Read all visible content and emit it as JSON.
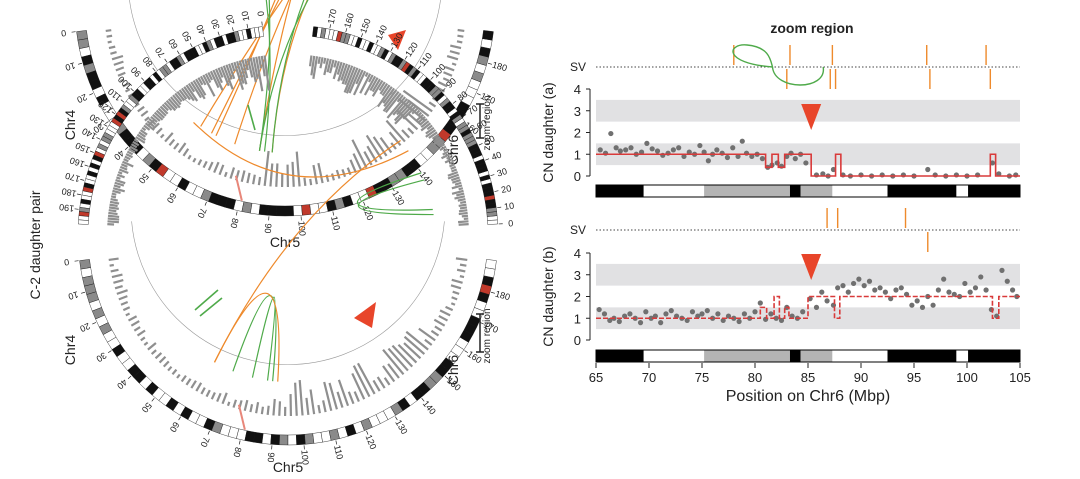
{
  "figure": {
    "side_label": "C-2 daughter pair",
    "zoom_title": "zoom region",
    "zoom_bracket_label": "zoom region",
    "chr_labels": {
      "chr4": "Chr4",
      "chr5": "Chr5",
      "chr6": "Chr6"
    },
    "chr4_ticks": [
      "0",
      "10",
      "20",
      "30",
      "40",
      "50",
      "60",
      "70",
      "80",
      "90",
      "100",
      "110",
      "120",
      "130",
      "140",
      "150",
      "160",
      "170",
      "180",
      "190"
    ],
    "chr5_ticks": [
      "0",
      "10",
      "20",
      "30",
      "40",
      "50",
      "60",
      "70",
      "80",
      "90",
      "100",
      "110",
      "120",
      "130",
      "140",
      "150",
      "160",
      "170",
      "180"
    ],
    "chr6_ticks": [
      "0",
      "10",
      "20",
      "30",
      "40",
      "50",
      "60",
      "70",
      "80",
      "90",
      "100",
      "110",
      "120",
      "130",
      "140",
      "150",
      "160",
      "170"
    ],
    "colors": {
      "orange": "#ee8a2c",
      "green": "#4faa4a",
      "red": "#e03a1e",
      "cn_red": "#d93a3a",
      "grey": "#8f8f8f",
      "band": "#e1e1e3"
    }
  },
  "chart_data": [
    {
      "type": "scatter",
      "panel": "a",
      "title": "zoom region",
      "xlabel": "Position on Chr6 (Mbp)",
      "ylabel": "CN daughter (a)",
      "sv_label": "SV",
      "xlim": [
        65,
        105
      ],
      "ylim": [
        0,
        4
      ],
      "x_ticks": [
        "65",
        "70",
        "75",
        "80",
        "85",
        "90",
        "95",
        "100",
        "105"
      ],
      "y_ticks": [
        "0",
        "1",
        "2",
        "3",
        "4"
      ],
      "arrow_x": 85.3,
      "sv_breakpoints": [
        78.0,
        83.0,
        83.3,
        87.1,
        87.3,
        87.6,
        96.2,
        96.5,
        101.8,
        102.2
      ],
      "sv_arc": [
        78.0,
        87.0
      ],
      "segments": [
        [
          65,
          81.0,
          1
        ],
        [
          81.0,
          81.6,
          0.4
        ],
        [
          81.6,
          82.2,
          1
        ],
        [
          82.2,
          82.8,
          0.4
        ],
        [
          82.8,
          85.3,
          1
        ],
        [
          85.3,
          87.6,
          0
        ],
        [
          87.6,
          88.1,
          1
        ],
        [
          88.1,
          102.2,
          0
        ],
        [
          102.2,
          102.7,
          1
        ],
        [
          102.7,
          105,
          0
        ]
      ],
      "points": [
        [
          65.4,
          1.2
        ],
        [
          65.9,
          1.05
        ],
        [
          66.4,
          1.95
        ],
        [
          66.9,
          1.3
        ],
        [
          67.3,
          1.15
        ],
        [
          67.8,
          1.2
        ],
        [
          68.3,
          1.3
        ],
        [
          68.8,
          1.0
        ],
        [
          69.3,
          1.1
        ],
        [
          69.8,
          1.5
        ],
        [
          70.3,
          1.25
        ],
        [
          70.8,
          1.15
        ],
        [
          71.3,
          0.95
        ],
        [
          71.8,
          1.05
        ],
        [
          72.3,
          1.2
        ],
        [
          72.8,
          1.3
        ],
        [
          73.3,
          0.9
        ],
        [
          73.8,
          1.1
        ],
        [
          74.3,
          1.0
        ],
        [
          74.8,
          1.4
        ],
        [
          75.2,
          1.1
        ],
        [
          75.6,
          0.7
        ],
        [
          76.0,
          1.0
        ],
        [
          76.4,
          1.2
        ],
        [
          76.9,
          1.05
        ],
        [
          77.4,
          0.85
        ],
        [
          77.9,
          1.3
        ],
        [
          78.4,
          0.9
        ],
        [
          78.8,
          1.6
        ],
        [
          79.2,
          1.05
        ],
        [
          79.7,
          0.9
        ],
        [
          80.2,
          1.0
        ],
        [
          80.7,
          0.8
        ],
        [
          81.2,
          0.4
        ],
        [
          81.6,
          0.5
        ],
        [
          82.1,
          0.6
        ],
        [
          82.5,
          0.45
        ],
        [
          83.0,
          0.9
        ],
        [
          83.4,
          1.05
        ],
        [
          83.8,
          0.8
        ],
        [
          84.3,
          1.0
        ],
        [
          84.8,
          0.6
        ],
        [
          85.8,
          0.05
        ],
        [
          86.4,
          0.1
        ],
        [
          86.9,
          0.0
        ],
        [
          87.4,
          0.3
        ],
        [
          88.3,
          0.05
        ],
        [
          89.0,
          0.0
        ],
        [
          90.0,
          0.05
        ],
        [
          91.0,
          0.0
        ],
        [
          92.0,
          0.05
        ],
        [
          93.0,
          0.0
        ],
        [
          94.0,
          0.05
        ],
        [
          95.0,
          0.0
        ],
        [
          96.3,
          0.3
        ],
        [
          97.0,
          0.05
        ],
        [
          98.0,
          0.0
        ],
        [
          99.0,
          0.05
        ],
        [
          100.0,
          0.0
        ],
        [
          101.0,
          0.05
        ],
        [
          102.4,
          0.6
        ],
        [
          103.0,
          0.1
        ],
        [
          104.0,
          0.0
        ],
        [
          104.6,
          0.05
        ]
      ],
      "ideogram": [
        [
          65,
          69.5,
          "#000000"
        ],
        [
          69.5,
          75.2,
          "#ffffff"
        ],
        [
          75.2,
          83.3,
          "#b4b4b4"
        ],
        [
          83.3,
          84.3,
          "#000000"
        ],
        [
          84.3,
          87.3,
          "#b4b4b4"
        ],
        [
          87.3,
          92.5,
          "#ffffff"
        ],
        [
          92.5,
          99.0,
          "#000000"
        ],
        [
          99.0,
          100.1,
          "#ffffff"
        ],
        [
          100.1,
          105,
          "#000000"
        ]
      ]
    },
    {
      "type": "scatter",
      "panel": "b",
      "xlabel": "Position on Chr6 (Mbp)",
      "ylabel": "CN daughter (b)",
      "sv_label": "SV",
      "xlim": [
        65,
        105
      ],
      "ylim": [
        0,
        4
      ],
      "x_ticks": [
        "65",
        "70",
        "75",
        "80",
        "85",
        "90",
        "95",
        "100",
        "105"
      ],
      "y_ticks": [
        "0",
        "1",
        "2",
        "3",
        "4"
      ],
      "arrow_x": 85.3,
      "sv_breakpoints": [
        86.8,
        87.8,
        94.2,
        96.3
      ],
      "segments": [
        [
          65,
          80.5,
          1
        ],
        [
          80.5,
          81.1,
          1.5
        ],
        [
          81.1,
          81.8,
          1
        ],
        [
          81.8,
          82.3,
          2
        ],
        [
          82.3,
          82.8,
          1
        ],
        [
          82.8,
          83.2,
          1.5
        ],
        [
          83.2,
          85.0,
          1
        ],
        [
          85.0,
          87.5,
          2
        ],
        [
          87.5,
          88.0,
          1
        ],
        [
          88.0,
          102.4,
          2
        ],
        [
          102.4,
          103.0,
          1
        ],
        [
          103.0,
          105,
          2
        ]
      ],
      "points": [
        [
          65.3,
          1.4
        ],
        [
          65.8,
          1.2
        ],
        [
          66.3,
          0.9
        ],
        [
          66.7,
          1.0
        ],
        [
          67.2,
          0.85
        ],
        [
          67.7,
          1.1
        ],
        [
          68.2,
          1.2
        ],
        [
          68.7,
          1.0
        ],
        [
          69.2,
          0.8
        ],
        [
          69.7,
          1.3
        ],
        [
          70.2,
          1.0
        ],
        [
          70.6,
          1.1
        ],
        [
          71.1,
          0.8
        ],
        [
          71.6,
          1.2
        ],
        [
          72.1,
          1.35
        ],
        [
          72.6,
          1.1
        ],
        [
          73.1,
          1.0
        ],
        [
          73.6,
          0.9
        ],
        [
          74.1,
          1.3
        ],
        [
          74.6,
          1.1
        ],
        [
          75.0,
          1.2
        ],
        [
          75.5,
          1.35
        ],
        [
          76.0,
          1.0
        ],
        [
          76.5,
          1.2
        ],
        [
          77.0,
          0.9
        ],
        [
          77.5,
          1.1
        ],
        [
          78.0,
          1.0
        ],
        [
          78.5,
          0.85
        ],
        [
          79.0,
          1.2
        ],
        [
          79.5,
          1.0
        ],
        [
          80.0,
          1.3
        ],
        [
          80.5,
          1.7
        ],
        [
          81.0,
          0.95
        ],
        [
          81.5,
          1.2
        ],
        [
          82.0,
          1.0
        ],
        [
          82.5,
          0.9
        ],
        [
          83.0,
          1.5
        ],
        [
          83.5,
          1.1
        ],
        [
          84.0,
          1.0
        ],
        [
          84.5,
          1.3
        ],
        [
          85.2,
          1.9
        ],
        [
          85.8,
          1.5
        ],
        [
          86.3,
          2.2
        ],
        [
          86.8,
          1.8
        ],
        [
          87.4,
          1.6
        ],
        [
          87.8,
          2.4
        ],
        [
          88.3,
          2.5
        ],
        [
          88.8,
          2.2
        ],
        [
          89.3,
          2.6
        ],
        [
          89.8,
          2.8
        ],
        [
          90.3,
          2.5
        ],
        [
          90.8,
          2.7
        ],
        [
          91.3,
          2.3
        ],
        [
          91.8,
          2.4
        ],
        [
          92.3,
          2.2
        ],
        [
          92.8,
          1.9
        ],
        [
          93.3,
          2.3
        ],
        [
          93.8,
          2.4
        ],
        [
          94.3,
          2.1
        ],
        [
          94.8,
          1.6
        ],
        [
          95.3,
          1.8
        ],
        [
          95.8,
          1.5
        ],
        [
          96.3,
          2.0
        ],
        [
          96.8,
          1.6
        ],
        [
          97.3,
          2.3
        ],
        [
          97.8,
          2.8
        ],
        [
          98.3,
          2.2
        ],
        [
          98.8,
          2.1
        ],
        [
          99.3,
          2.0
        ],
        [
          99.8,
          2.6
        ],
        [
          100.3,
          2.2
        ],
        [
          100.8,
          2.4
        ],
        [
          101.3,
          2.9
        ],
        [
          101.8,
          2.3
        ],
        [
          102.3,
          1.4
        ],
        [
          102.8,
          1.1
        ],
        [
          103.3,
          3.2
        ],
        [
          103.8,
          2.7
        ],
        [
          104.3,
          2.3
        ],
        [
          104.7,
          2.0
        ]
      ],
      "ideogram": [
        [
          65,
          69.5,
          "#000000"
        ],
        [
          69.5,
          75.2,
          "#ffffff"
        ],
        [
          75.2,
          83.3,
          "#b4b4b4"
        ],
        [
          83.3,
          84.3,
          "#000000"
        ],
        [
          84.3,
          87.3,
          "#b4b4b4"
        ],
        [
          87.3,
          92.5,
          "#ffffff"
        ],
        [
          92.5,
          99.0,
          "#000000"
        ],
        [
          99.0,
          100.1,
          "#ffffff"
        ],
        [
          100.1,
          105,
          "#000000"
        ]
      ]
    }
  ]
}
